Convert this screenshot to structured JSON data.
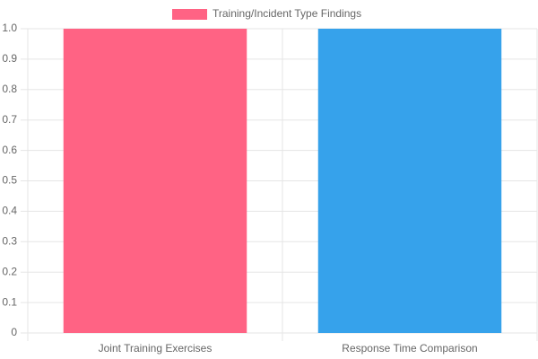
{
  "chart_data": {
    "type": "bar",
    "categories": [
      "Joint Training Exercises",
      "Response Time Comparison"
    ],
    "series": [
      {
        "name": "Training/Incident Type Findings",
        "colors": [
          "#ff6384",
          "#36a2eb"
        ],
        "values": [
          1,
          1
        ]
      }
    ],
    "ylim": [
      0,
      1
    ],
    "yticks": [
      0,
      0.1,
      0.2,
      0.3,
      0.4,
      0.5,
      0.6,
      0.7,
      0.8,
      0.9,
      {
        "value": 1,
        "label": "1.0"
      }
    ],
    "grid": true,
    "legend": "top"
  }
}
